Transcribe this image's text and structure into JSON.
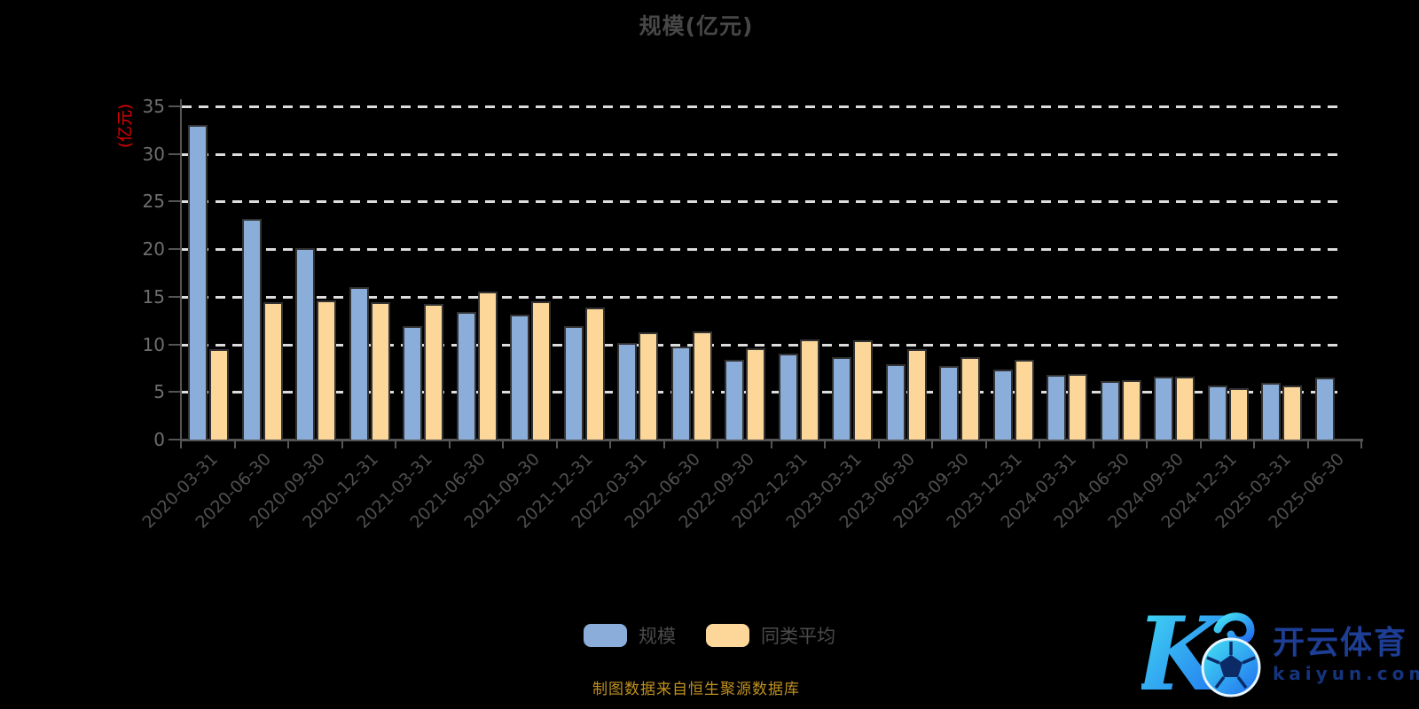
{
  "title": "规模(亿元)",
  "caption": "制图数据来自恒生聚源数据库",
  "watermark": {
    "logo_letter": "K",
    "brand": "开云体育",
    "domain": "kaiyun.com"
  },
  "colors": {
    "background": "#000000",
    "bar_scale": "#8badd9",
    "bar_peer": "#fcd799",
    "bar_border": "#333333",
    "grid": "#dcdcdc",
    "axis": "#555555",
    "y_tick_label": "#6e6e6e",
    "x_tick_label": "#4f4f4f",
    "title": "#474747",
    "y_axis_name": "#e60000",
    "caption": "#c09020",
    "watermark_text": "#1d3e94",
    "logo_gradient_start": "#45e3f2",
    "logo_gradient_end": "#1f6cf0"
  },
  "chart_data": {
    "type": "bar",
    "title": "规模(亿元)",
    "xlabel": "",
    "ylabel": "(亿元)",
    "ylim": [
      0,
      35
    ],
    "y_ticks": [
      0,
      5,
      10,
      15,
      20,
      25,
      30,
      35
    ],
    "grid": "horizontal dashed",
    "legend_position": "bottom",
    "categories": [
      "2020-03-31",
      "2020-06-30",
      "2020-09-30",
      "2020-12-31",
      "2021-03-31",
      "2021-06-30",
      "2021-09-30",
      "2021-12-31",
      "2022-03-31",
      "2022-06-30",
      "2022-09-30",
      "2022-12-31",
      "2023-03-31",
      "2023-06-30",
      "2023-09-30",
      "2023-12-31",
      "2024-03-31",
      "2024-06-30",
      "2024-09-30",
      "2024-12-31",
      "2025-03-31",
      "2025-06-30"
    ],
    "series": [
      {
        "name": "规模",
        "color": "#8badd9",
        "values": [
          33.0,
          23.2,
          20.1,
          16.0,
          11.9,
          13.4,
          13.1,
          11.9,
          10.1,
          9.8,
          8.4,
          9.0,
          8.7,
          7.9,
          7.7,
          7.4,
          6.8,
          6.1,
          6.6,
          5.7,
          6.0,
          6.5
        ]
      },
      {
        "name": "同类平均",
        "color": "#fcd799",
        "values": [
          9.5,
          14.4,
          14.6,
          14.4,
          14.2,
          15.5,
          14.5,
          13.9,
          11.3,
          11.4,
          9.6,
          10.5,
          10.4,
          9.5,
          8.7,
          8.4,
          6.9,
          6.2,
          6.6,
          5.4,
          5.7,
          null
        ]
      }
    ]
  }
}
